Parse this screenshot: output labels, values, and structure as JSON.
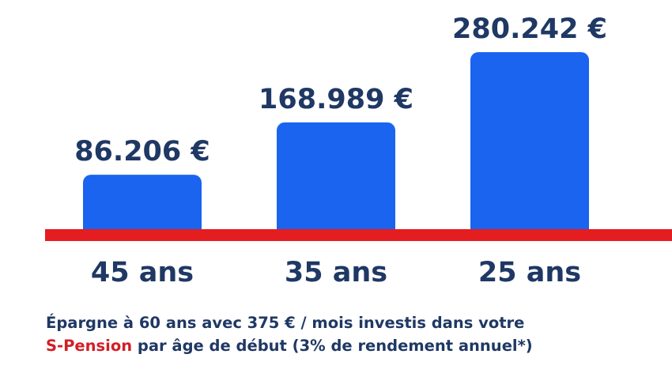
{
  "colors": {
    "bar": "#1a64f0",
    "baseline": "#e41d20",
    "text": "#1f3864",
    "accent": "#d11f25",
    "background": "#ffffff"
  },
  "chart_data": {
    "type": "bar",
    "categories": [
      "45 ans",
      "35 ans",
      "25 ans"
    ],
    "values": [
      86206,
      168989,
      280242
    ],
    "value_labels": [
      "86.206 €",
      "168.989 €",
      "280.242 €"
    ],
    "unit": "€",
    "ylim": [
      0,
      280242
    ],
    "grid": false,
    "legend": "none"
  },
  "caption": {
    "line1": "Épargne à 60 ans avec 375 € / mois investis dans votre",
    "line2_highlight": "S-Pension",
    "line2_rest": " par âge de début (3% de rendement annuel*)"
  }
}
